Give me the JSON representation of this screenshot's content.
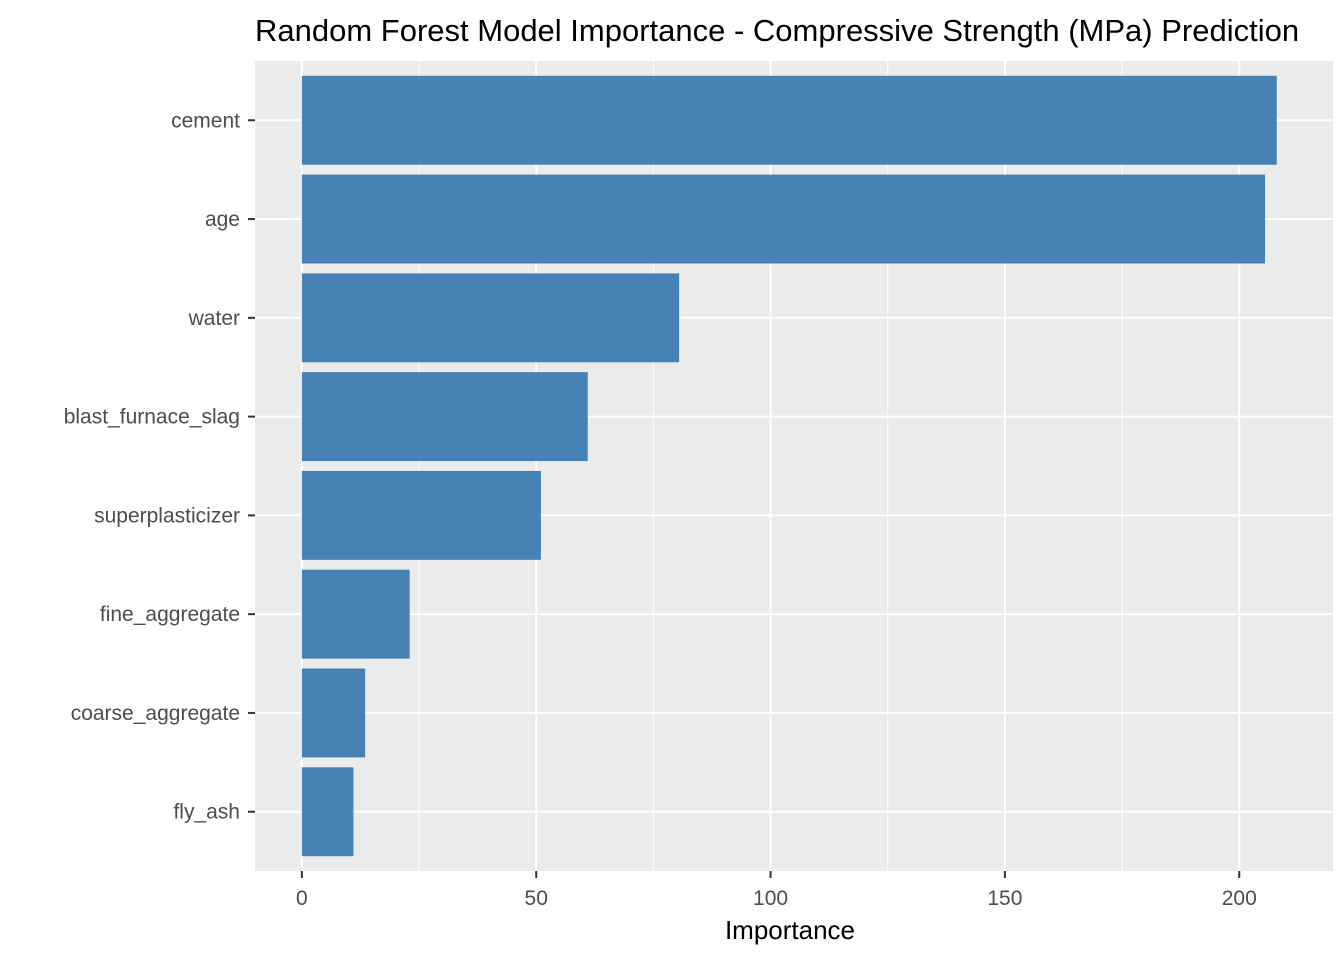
{
  "chart_data": {
    "type": "bar",
    "orientation": "horizontal",
    "title": "Random Forest Model Importance - Compressive Strength (MPa) Prediction",
    "xlabel": "Importance",
    "ylabel": "",
    "categories": [
      "cement",
      "age",
      "water",
      "blast_furnace_slag",
      "superplasticizer",
      "fine_aggregate",
      "coarse_aggregate",
      "fly_ash"
    ],
    "values": [
      208,
      205.5,
      80.5,
      61,
      51,
      23,
      13.5,
      11
    ],
    "xlim": [
      -10,
      220
    ],
    "x_ticks": [
      "0",
      "50",
      "100",
      "150",
      "200"
    ],
    "bar_color": "#4682B4",
    "panel_background": "#EBEBEB",
    "grid": true,
    "legend": "none"
  }
}
